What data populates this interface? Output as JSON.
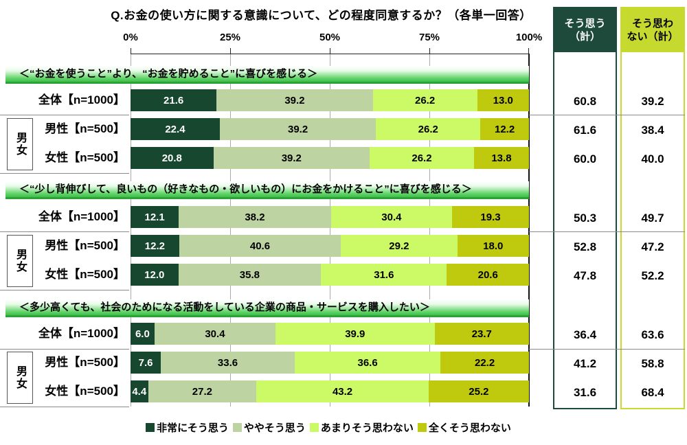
{
  "chart_data": {
    "type": "bar",
    "variant": "horizontal-stacked",
    "title": "Q.お金の使い方に関する意識について、どの程度同意するか？（各単一回答）",
    "x_ticks": [
      "0%",
      "25%",
      "50%",
      "75%",
      "100%"
    ],
    "xlim": [
      0,
      100
    ],
    "grid": true,
    "legend_position": "bottom",
    "series": [
      "非常にそう思う",
      "ややそう思う",
      "あまりそう思わない",
      "全くそう思わない"
    ],
    "group_label": "男女",
    "summary_columns": [
      {
        "line1": "そう思う",
        "line2": "（計）"
      },
      {
        "line1": "そう思わ",
        "line2": "ない（計）"
      }
    ],
    "colors": {
      "segments": [
        "#17472f",
        "#bed3a2",
        "#ccfa66",
        "#bfc90e"
      ],
      "agree_header": "#1d4a3a",
      "agree_border": "#1d4a3a",
      "disagree_header": "#c6d92e",
      "disagree_border": "#c9da2b",
      "section_header_green": "#3fbf4a"
    },
    "sections": [
      {
        "heading": "＜“お金を使うこと”より、“お金を貯めること”に喜びを感じる＞",
        "rows": [
          {
            "label": "全体【n=1000】",
            "values": [
              "21.6",
              "39.2",
              "26.2",
              "13.0"
            ],
            "agree": "60.8",
            "disagree": "39.2"
          },
          {
            "label": "男性【n=500】",
            "values": [
              "22.4",
              "39.2",
              "26.2",
              "12.2"
            ],
            "agree": "61.6",
            "disagree": "38.4"
          },
          {
            "label": "女性【n=500】",
            "values": [
              "20.8",
              "39.2",
              "26.2",
              "13.8"
            ],
            "agree": "60.0",
            "disagree": "40.0"
          }
        ]
      },
      {
        "heading": "＜“少し背伸びして、良いもの（好きなもの・欲しいもの）にお金をかけること”に喜びを感じる＞",
        "rows": [
          {
            "label": "全体【n=1000】",
            "values": [
              "12.1",
              "38.2",
              "30.4",
              "19.3"
            ],
            "agree": "50.3",
            "disagree": "49.7"
          },
          {
            "label": "男性【n=500】",
            "values": [
              "12.2",
              "40.6",
              "29.2",
              "18.0"
            ],
            "agree": "52.8",
            "disagree": "47.2"
          },
          {
            "label": "女性【n=500】",
            "values": [
              "12.0",
              "35.8",
              "31.6",
              "20.6"
            ],
            "agree": "47.8",
            "disagree": "52.2"
          }
        ]
      },
      {
        "heading": "＜多少高くても、社会のためになる活動をしている企業の商品・サービスを購入したい＞",
        "rows": [
          {
            "label": "全体【n=1000】",
            "values": [
              "6.0",
              "30.4",
              "39.9",
              "23.7"
            ],
            "agree": "36.4",
            "disagree": "63.6"
          },
          {
            "label": "男性【n=500】",
            "values": [
              "7.6",
              "33.6",
              "36.6",
              "22.2"
            ],
            "agree": "41.2",
            "disagree": "58.8"
          },
          {
            "label": "女性【n=500】",
            "values": [
              "4.4",
              "27.2",
              "43.2",
              "25.2"
            ],
            "agree": "31.6",
            "disagree": "68.4"
          }
        ]
      }
    ]
  }
}
